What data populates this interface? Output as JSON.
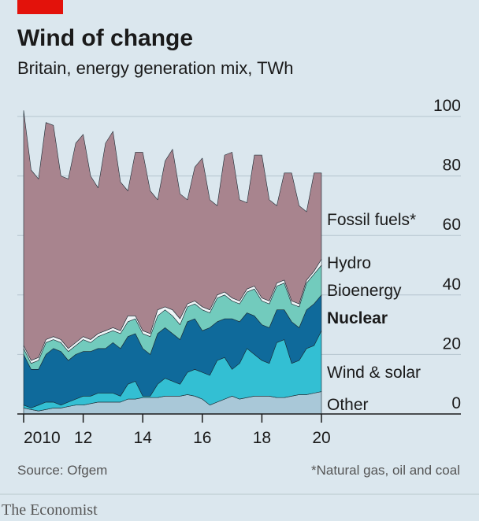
{
  "chart_data": {
    "type": "stacked_area",
    "title": "Wind of change",
    "subtitle": "Britain, energy generation mix, TWh",
    "source": "Source: Ofgem",
    "note": "*Natural gas, oil and coal",
    "brand": "The Economist",
    "x": [
      2010,
      2010.25,
      2010.5,
      2010.75,
      2011,
      2011.25,
      2011.5,
      2011.75,
      2012,
      2012.25,
      2012.5,
      2012.75,
      2013,
      2013.25,
      2013.5,
      2013.75,
      2014,
      2014.25,
      2014.5,
      2014.75,
      2015,
      2015.25,
      2015.5,
      2015.75,
      2016,
      2016.25,
      2016.5,
      2016.75,
      2017,
      2017.25,
      2017.5,
      2017.75,
      2018,
      2018.25,
      2018.5,
      2018.75,
      2019,
      2019.25,
      2019.5,
      2019.75,
      2020
    ],
    "xlim": [
      2010,
      2020
    ],
    "xticks": [
      2010,
      {
        "value": 2012,
        "label": "12"
      },
      {
        "value": 2014,
        "label": "14"
      },
      {
        "value": 2016,
        "label": "16"
      },
      {
        "value": 2018,
        "label": "18"
      },
      {
        "value": 2020,
        "label": "20"
      }
    ],
    "ylim": [
      0,
      100
    ],
    "yticks": [
      0,
      20,
      40,
      60,
      80,
      100
    ],
    "grid": true,
    "series": [
      {
        "name": "Other",
        "color": "#a9c8d8",
        "values": [
          2,
          1.5,
          1,
          1.5,
          2,
          2,
          2.5,
          3,
          3,
          3.5,
          4,
          4,
          4,
          4,
          5,
          5,
          5.5,
          5.5,
          5.5,
          6,
          6,
          6,
          6.5,
          6,
          5,
          3,
          4,
          5,
          6,
          5,
          5.5,
          6,
          6,
          6,
          5.5,
          5.5,
          6,
          6.5,
          6.5,
          7,
          7.5
        ]
      },
      {
        "name": "Wind & solar",
        "color": "#33bfd3",
        "values": [
          1,
          0.5,
          2,
          2.5,
          2,
          1,
          1.5,
          2,
          3,
          2.5,
          3,
          3,
          3,
          2,
          5,
          6,
          0.5,
          0.5,
          4.5,
          6,
          5,
          4,
          7.5,
          9,
          9,
          10,
          14,
          14,
          9,
          12,
          16.5,
          14,
          12,
          11,
          18.5,
          19.5,
          11,
          11.5,
          15.5,
          16,
          20.5
        ]
      },
      {
        "name": "Nuclear",
        "color": "#0f6a9b",
        "values": [
          17,
          13,
          12,
          16,
          18,
          18,
          14,
          15,
          15,
          15,
          15,
          15,
          17,
          16,
          16,
          16,
          16,
          14,
          17,
          17,
          16,
          15,
          17,
          17,
          14,
          16,
          13,
          13,
          17,
          14,
          12,
          13,
          12,
          12,
          11,
          10,
          14,
          11,
          13,
          14,
          12
        ]
      },
      {
        "name": "Bioenergy",
        "color": "#72cbbd",
        "values": [
          2,
          2,
          3,
          4,
          3,
          3,
          3,
          3,
          4,
          3,
          4,
          5,
          4,
          5,
          5,
          5,
          5,
          6,
          6,
          6,
          6,
          5,
          5,
          5,
          7,
          5,
          8,
          8,
          6,
          6,
          7,
          9,
          8,
          8,
          8,
          9,
          6,
          7,
          9,
          10,
          10
        ]
      },
      {
        "name": "Hydro",
        "color": "#eef4f6",
        "values": [
          1,
          1,
          1,
          1,
          1,
          1,
          1,
          1,
          1,
          1,
          1,
          1,
          1,
          1,
          2,
          1,
          1,
          1,
          2,
          1,
          2,
          2,
          1,
          1,
          1,
          1,
          1,
          1,
          1,
          1,
          1,
          1,
          1,
          1,
          1,
          1,
          1,
          1,
          1,
          1,
          2
        ]
      },
      {
        "name": "Fossil fuels*",
        "color": "#a8848e",
        "values": [
          79,
          64,
          60,
          73,
          71,
          55,
          57,
          67,
          68,
          55,
          49,
          63,
          66,
          50,
          42,
          55,
          60,
          48,
          37,
          49,
          54,
          42,
          35,
          45,
          50,
          37,
          30,
          46,
          49,
          34,
          29,
          44,
          48,
          34,
          26,
          36,
          43,
          33,
          23,
          33,
          29
        ]
      }
    ]
  }
}
